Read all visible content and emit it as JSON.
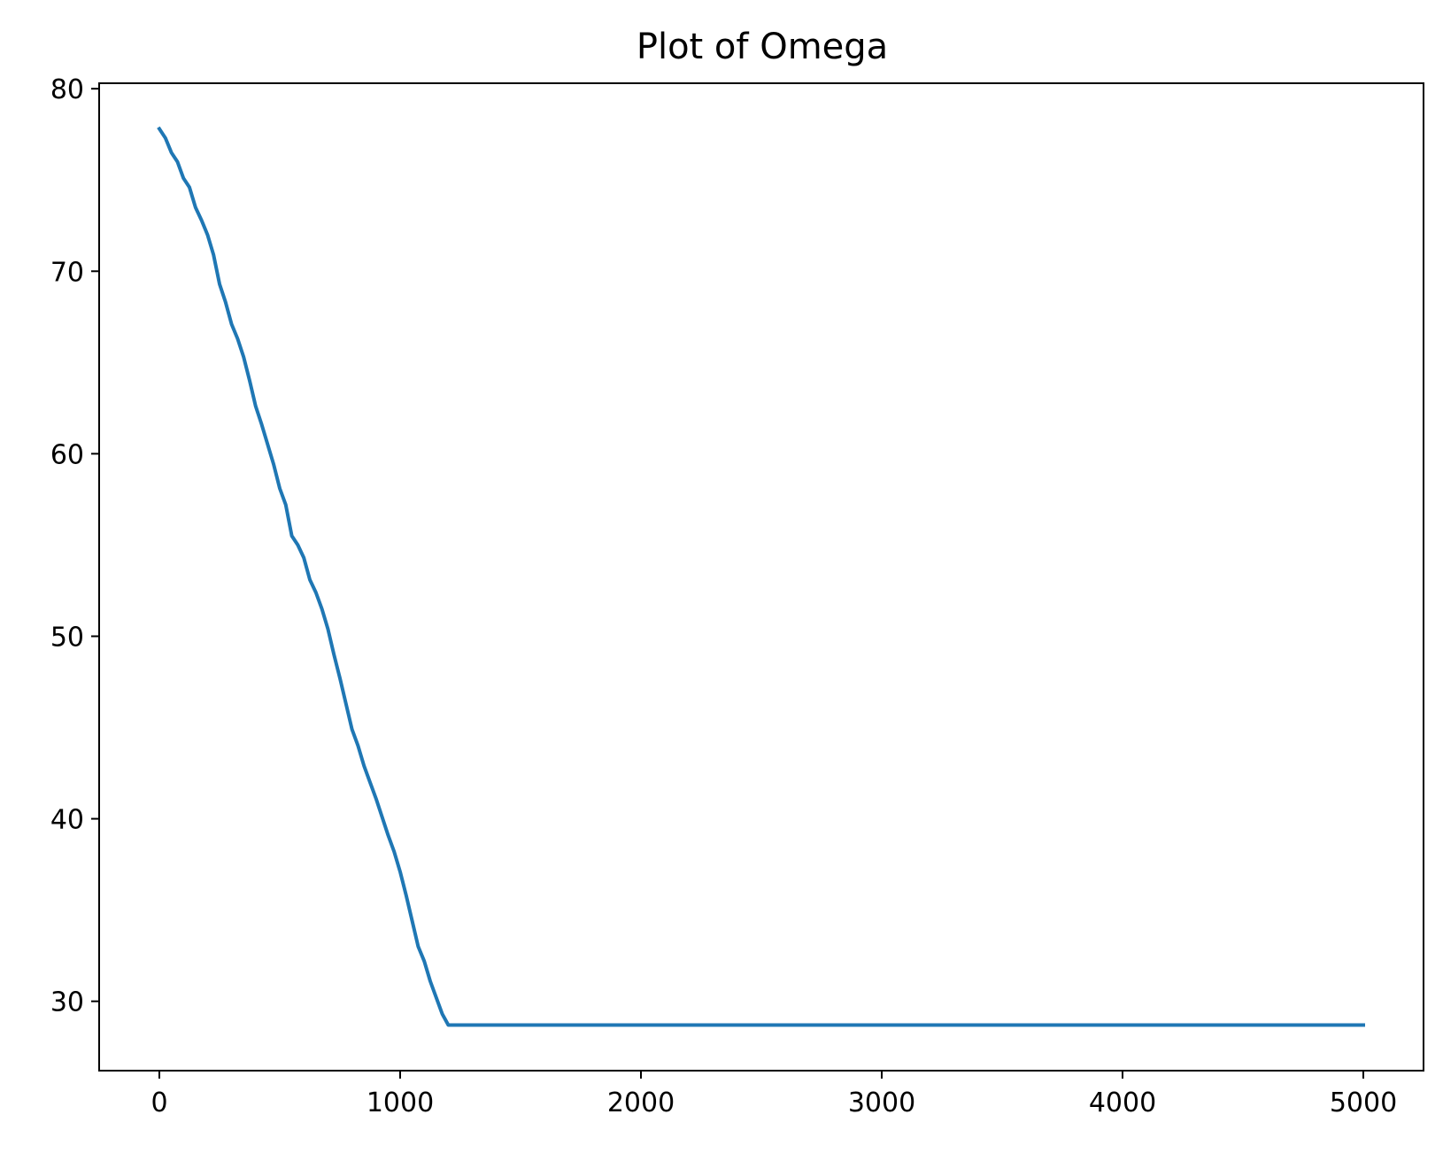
{
  "chart_data": {
    "type": "line",
    "title": "Plot of Omega",
    "xlabel": "",
    "ylabel": "",
    "xlim": [
      -250,
      5250
    ],
    "ylim": [
      26.2,
      80.3
    ],
    "xticks": [
      0,
      1000,
      2000,
      3000,
      4000,
      5000
    ],
    "yticks": [
      30,
      40,
      50,
      60,
      70,
      80
    ],
    "grid": false,
    "legend": "none",
    "colors": {
      "line": "#1f77b4",
      "axes": "#000000",
      "background": "#ffffff"
    },
    "series": [
      {
        "points": [
          [
            0,
            77.8
          ],
          [
            25,
            77.3
          ],
          [
            50,
            76.5
          ],
          [
            75,
            76.0
          ],
          [
            100,
            75.1
          ],
          [
            125,
            74.6
          ],
          [
            150,
            73.5
          ],
          [
            175,
            72.8
          ],
          [
            200,
            72.0
          ],
          [
            225,
            70.9
          ],
          [
            250,
            69.3
          ],
          [
            275,
            68.3
          ],
          [
            300,
            67.1
          ],
          [
            325,
            66.3
          ],
          [
            350,
            65.3
          ],
          [
            375,
            64.0
          ],
          [
            400,
            62.6
          ],
          [
            425,
            61.6
          ],
          [
            450,
            60.5
          ],
          [
            475,
            59.4
          ],
          [
            500,
            58.1
          ],
          [
            525,
            57.2
          ],
          [
            550,
            55.5
          ],
          [
            575,
            55.0
          ],
          [
            600,
            54.3
          ],
          [
            625,
            53.1
          ],
          [
            650,
            52.4
          ],
          [
            675,
            51.5
          ],
          [
            700,
            50.4
          ],
          [
            725,
            49.0
          ],
          [
            750,
            47.7
          ],
          [
            775,
            46.3
          ],
          [
            800,
            44.9
          ],
          [
            825,
            44.0
          ],
          [
            850,
            42.9
          ],
          [
            875,
            42.0
          ],
          [
            900,
            41.1
          ],
          [
            925,
            40.1
          ],
          [
            950,
            39.1
          ],
          [
            975,
            38.2
          ],
          [
            1000,
            37.1
          ],
          [
            1025,
            35.8
          ],
          [
            1050,
            34.4
          ],
          [
            1075,
            33.0
          ],
          [
            1100,
            32.2
          ],
          [
            1125,
            31.1
          ],
          [
            1150,
            30.2
          ],
          [
            1175,
            29.3
          ],
          [
            1200,
            28.7
          ],
          [
            1225,
            28.7
          ],
          [
            1300,
            28.7
          ],
          [
            1400,
            28.7
          ],
          [
            1500,
            28.7
          ],
          [
            1750,
            28.7
          ],
          [
            2000,
            28.7
          ],
          [
            2250,
            28.7
          ],
          [
            2500,
            28.7
          ],
          [
            2750,
            28.7
          ],
          [
            3000,
            28.7
          ],
          [
            3250,
            28.7
          ],
          [
            3500,
            28.7
          ],
          [
            3750,
            28.7
          ],
          [
            4000,
            28.7
          ],
          [
            4250,
            28.7
          ],
          [
            4500,
            28.7
          ],
          [
            4750,
            28.7
          ],
          [
            5000,
            28.7
          ]
        ]
      }
    ]
  }
}
